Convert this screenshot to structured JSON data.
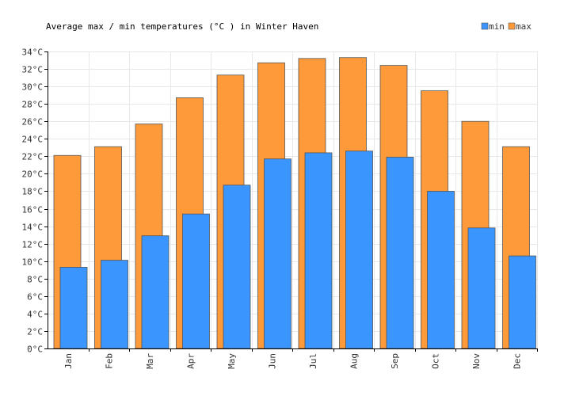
{
  "chart_data": {
    "type": "bar",
    "title": "Average max / min temperatures (°C ) in Winter Haven",
    "categories": [
      "Jan",
      "Feb",
      "Mar",
      "Apr",
      "May",
      "Jun",
      "Jul",
      "Aug",
      "Sep",
      "Oct",
      "Nov",
      "Dec"
    ],
    "series": [
      {
        "name": "min",
        "color": "#3a95ff",
        "values": [
          9.3,
          10.1,
          12.9,
          15.4,
          18.7,
          21.7,
          22.4,
          22.6,
          21.9,
          18.0,
          13.8,
          10.6
        ]
      },
      {
        "name": "max",
        "color": "#ff9a3b",
        "values": [
          22.1,
          23.1,
          25.7,
          28.7,
          31.3,
          32.7,
          33.2,
          33.3,
          32.4,
          29.5,
          26.0,
          23.1
        ]
      }
    ],
    "ylim": [
      0,
      34
    ],
    "ytick_step": 2,
    "ytick_suffix": "°C",
    "legend_position": "top-right",
    "grid": true
  }
}
